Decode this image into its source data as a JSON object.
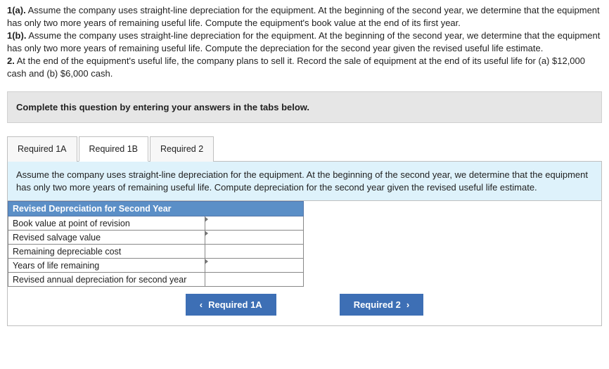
{
  "question": {
    "p1": "1(a). Assume the company uses straight-line depreciation for the equipment. At the beginning of the second year, we determine that the equipment has only two more years of remaining useful life. Compute the equipment's book value at the end of its first year.",
    "p2": "1(b). Assume the company uses straight-line depreciation for the equipment. At the beginning of the second year, we determine that the equipment has only two more years of remaining useful life. Compute the depreciation for the second year given the revised useful life estimate.",
    "p3": "2. At the end of the equipment's useful life, the company plans to sell it. Record the sale of equipment at the end of its useful life for (a) $12,000 cash and (b) $6,000 cash."
  },
  "instruction": "Complete this question by entering your answers in the tabs below.",
  "tabs": {
    "t1": "Required 1A",
    "t2": "Required 1B",
    "t3": "Required 2"
  },
  "panel": {
    "desc": "Assume the company uses straight-line depreciation for the equipment. At the beginning of the second year, we determine that the equipment has only two more years of remaining useful life. Compute depreciation for the second year given the revised useful life estimate.",
    "table_header": "Revised Depreciation for Second Year",
    "rows": {
      "r1": "Book value at point of revision",
      "r2": "Revised salvage value",
      "r3": "Remaining depreciable cost",
      "r4": "Years of life remaining",
      "r5": "Revised annual depreciation for second year"
    }
  },
  "nav": {
    "prev": "Required 1A",
    "next": "Required 2"
  },
  "colors": {
    "instruction_bg": "#e6e6e6",
    "panel_desc_bg": "#def2fb",
    "table_header_bg": "#5b8fc7",
    "nav_btn_bg": "#3d6fb5"
  }
}
